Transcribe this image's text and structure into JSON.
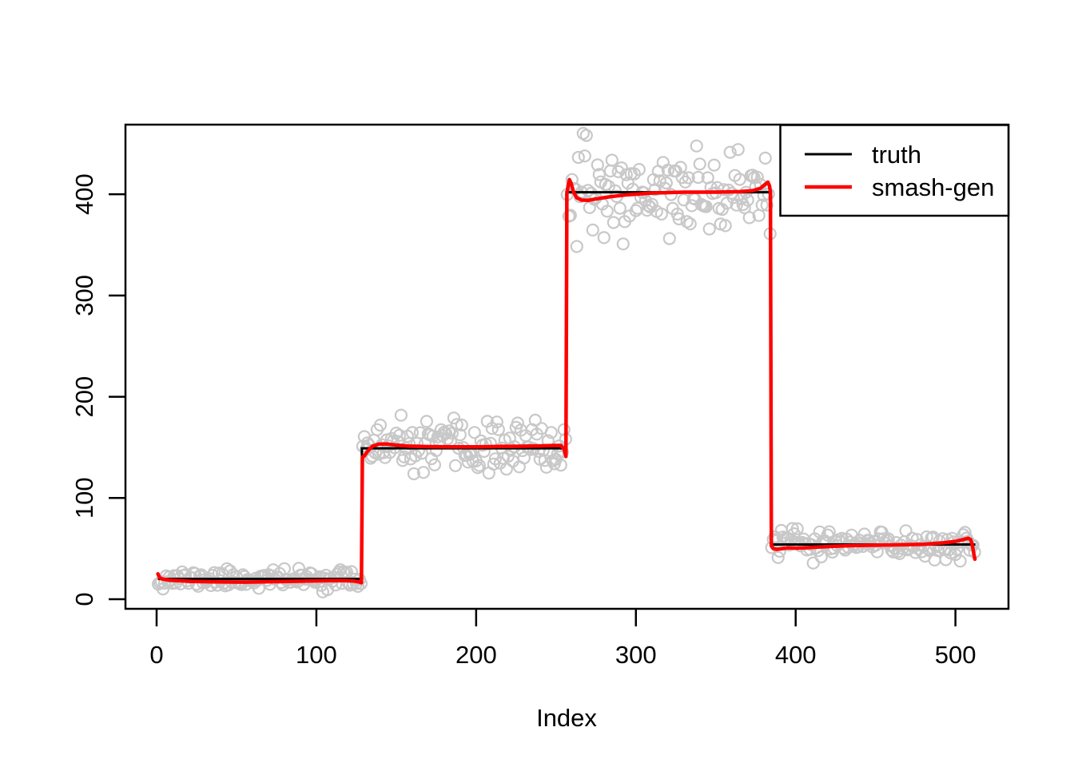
{
  "window": {
    "background": "#FFFFFF"
  },
  "chart_data": {
    "type": "scatter",
    "subtype": "noisy step-function with true signal and denoised estimate overlaid",
    "title": "",
    "xlabel": "Index",
    "ylabel": "",
    "xlim": [
      -19.5,
      533.2
    ],
    "ylim": [
      -9.5,
      468.8
    ],
    "x_ticks": [
      0,
      100,
      200,
      300,
      400,
      500
    ],
    "y_ticks": [
      0,
      100,
      200,
      300,
      400
    ],
    "grid": false,
    "legend_position": "topright",
    "n_points": 512,
    "noise_model": "poisson-like, sd = sqrt(level)",
    "scatter_seed": 11,
    "scatter_color": "#C8C8C8",
    "scatter_point_radius": 7,
    "truth_segments": [
      {
        "start_index": 1,
        "end_index": 128,
        "level": 20
      },
      {
        "start_index": 128,
        "end_index": 256,
        "level": 149
      },
      {
        "start_index": 256,
        "end_index": 384,
        "level": 402
      },
      {
        "start_index": 384,
        "end_index": 512,
        "level": 54
      }
    ],
    "series": [
      {
        "name": "truth",
        "color": "#000000",
        "line_width": 3
      },
      {
        "name": "smash-gen",
        "color": "#FF0000",
        "line_width": 4.5
      }
    ],
    "fitted_points": [
      [
        0.8,
        25
      ],
      [
        2,
        21
      ],
      [
        4,
        19.8
      ],
      [
        8,
        18.8
      ],
      [
        14,
        18.2
      ],
      [
        22,
        17.6
      ],
      [
        35,
        17.1
      ],
      [
        55,
        16.9
      ],
      [
        75,
        17.3
      ],
      [
        95,
        17.9
      ],
      [
        108,
        18.3
      ],
      [
        118,
        18.3
      ],
      [
        124,
        17.8
      ],
      [
        127,
        16.9
      ],
      [
        128.2,
        16.2
      ],
      [
        128.8,
        140.5
      ],
      [
        130,
        141.5
      ],
      [
        132,
        146
      ],
      [
        135,
        151
      ],
      [
        139,
        153.2
      ],
      [
        144,
        153.3
      ],
      [
        150,
        152.2
      ],
      [
        158,
        151.2
      ],
      [
        170,
        150.7
      ],
      [
        185,
        150.5
      ],
      [
        200,
        150.6
      ],
      [
        215,
        150.9
      ],
      [
        228,
        151.1
      ],
      [
        240,
        151.4
      ],
      [
        248,
        151.8
      ],
      [
        253,
        151.9
      ],
      [
        255,
        148.5
      ],
      [
        256.2,
        141
      ],
      [
        256.8,
        400
      ],
      [
        257.6,
        409
      ],
      [
        258.4,
        414.5
      ],
      [
        259.4,
        411
      ],
      [
        261,
        402
      ],
      [
        263,
        396.5
      ],
      [
        266,
        394.3
      ],
      [
        270,
        394
      ],
      [
        276,
        395.6
      ],
      [
        284,
        397.6
      ],
      [
        295,
        399.6
      ],
      [
        310,
        401.2
      ],
      [
        330,
        402.1
      ],
      [
        350,
        402.1
      ],
      [
        365,
        402.6
      ],
      [
        373,
        403.6
      ],
      [
        378,
        406
      ],
      [
        381,
        410
      ],
      [
        382.6,
        412
      ],
      [
        383.6,
        408.5
      ],
      [
        384.2,
        402
      ],
      [
        384.8,
        52.5
      ],
      [
        386,
        50
      ],
      [
        388,
        49.2
      ],
      [
        391,
        49.8
      ],
      [
        395,
        50.8
      ],
      [
        400,
        50.4
      ],
      [
        406,
        50.8
      ],
      [
        414,
        51.5
      ],
      [
        424,
        52.2
      ],
      [
        436,
        52.9
      ],
      [
        450,
        53.3
      ],
      [
        465,
        53.7
      ],
      [
        480,
        54.3
      ],
      [
        492,
        55.6
      ],
      [
        500,
        57.1
      ],
      [
        505,
        58.9
      ],
      [
        508,
        60.2
      ],
      [
        509.5,
        59
      ],
      [
        510.5,
        54
      ],
      [
        511.5,
        45
      ],
      [
        512.2,
        39.5
      ]
    ]
  },
  "legend": {
    "items": [
      {
        "label": "truth",
        "color": "#000000",
        "swatch_width": 3
      },
      {
        "label": "smash-gen",
        "color": "#FF0000",
        "swatch_width": 4.5
      }
    ]
  }
}
